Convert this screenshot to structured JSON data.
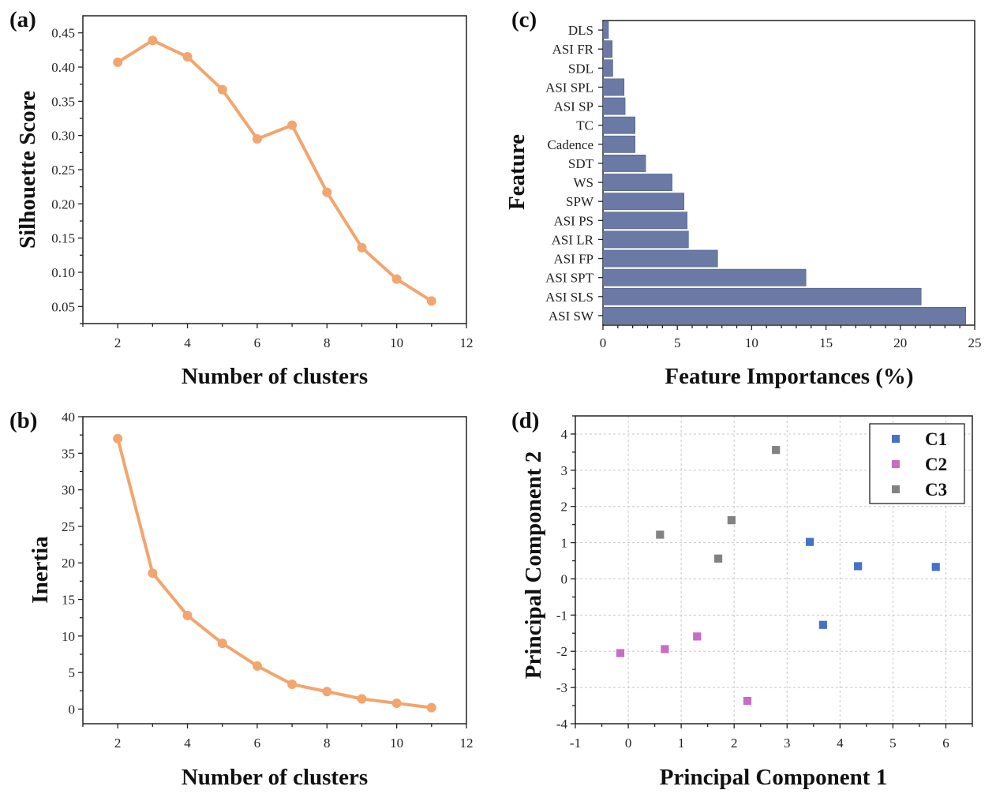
{
  "chart_data": [
    {
      "id": "a",
      "panel_label": "(a)",
      "type": "line",
      "title": "",
      "xlabel": "Number of clusters",
      "ylabel": "Silhouette Score",
      "x": [
        2,
        3,
        4,
        5,
        6,
        7,
        8,
        9,
        10,
        11
      ],
      "series": [
        {
          "name": "Silhouette Score",
          "color": "#f2a56e",
          "values": [
            0.407,
            0.439,
            0.415,
            0.367,
            0.295,
            0.315,
            0.217,
            0.136,
            0.09,
            0.058
          ]
        }
      ],
      "xlim": [
        1,
        12
      ],
      "ylim": [
        0.025,
        0.475
      ],
      "xticks": [
        2,
        4,
        6,
        8,
        10,
        12
      ],
      "xtick_labels": [
        "2",
        "4",
        "6",
        "8",
        "10",
        "12"
      ],
      "yticks": [
        0.05,
        0.1,
        0.15,
        0.2,
        0.25,
        0.3,
        0.35,
        0.4,
        0.45
      ],
      "ytick_labels": [
        "0.05",
        "0.10",
        "0.15",
        "0.20",
        "0.25",
        "0.30",
        "0.35",
        "0.40",
        "0.45"
      ],
      "grid": false,
      "legend": "none"
    },
    {
      "id": "b",
      "panel_label": "(b)",
      "type": "line",
      "title": "",
      "xlabel": "Number of clusters",
      "ylabel": "Inertia",
      "x": [
        2,
        3,
        4,
        5,
        6,
        7,
        8,
        9,
        10,
        11
      ],
      "series": [
        {
          "name": "Inertia",
          "color": "#f2a56e",
          "values": [
            37.0,
            18.6,
            12.8,
            9.0,
            5.9,
            3.4,
            2.4,
            1.4,
            0.8,
            0.2
          ]
        }
      ],
      "xlim": [
        1,
        12
      ],
      "ylim": [
        -2,
        40
      ],
      "xticks": [
        2,
        4,
        6,
        8,
        10,
        12
      ],
      "xtick_labels": [
        "2",
        "4",
        "6",
        "8",
        "10",
        "12"
      ],
      "yticks": [
        0,
        5,
        10,
        15,
        20,
        25,
        30,
        35,
        40
      ],
      "ytick_labels": [
        "0",
        "5",
        "10",
        "15",
        "20",
        "25",
        "30",
        "35",
        "40"
      ],
      "grid": false,
      "legend": "none"
    },
    {
      "id": "c",
      "panel_label": "(c)",
      "type": "bar",
      "orientation": "horizontal",
      "title": "",
      "xlabel": "Feature Importances (%)",
      "ylabel": "Feature",
      "categories": [
        "DLS",
        "ASI FR",
        "SDL",
        "ASI SPL",
        "ASI SP",
        "TC",
        "Cadence",
        "SDT",
        "WS",
        "SPW",
        "ASI PS",
        "ASI LR",
        "ASI FP",
        "ASI SPT",
        "ASI SLS",
        "ASI SW"
      ],
      "values": [
        0.37,
        0.62,
        0.66,
        1.42,
        1.49,
        2.16,
        2.16,
        2.87,
        4.65,
        5.45,
        5.66,
        5.75,
        7.71,
        13.65,
        21.4,
        24.4
      ],
      "color": "#6a7aa4",
      "xlim": [
        0,
        25
      ],
      "xticks": [
        0,
        5,
        10,
        15,
        20,
        25
      ],
      "xtick_labels": [
        "0",
        "5",
        "10",
        "15",
        "20",
        "25"
      ],
      "grid": false,
      "legend": "none"
    },
    {
      "id": "d",
      "panel_label": "(d)",
      "type": "scatter",
      "title": "",
      "xlabel": "Principal Component 1",
      "ylabel": "Principal Component 2",
      "series": [
        {
          "name": "C1",
          "color": "#4472c4",
          "points": [
            [
              3.43,
              1.02
            ],
            [
              4.34,
              0.35
            ],
            [
              5.81,
              0.33
            ],
            [
              3.68,
              -1.27
            ]
          ]
        },
        {
          "name": "C2",
          "color": "#c86cc4",
          "points": [
            [
              -0.15,
              -2.05
            ],
            [
              0.69,
              -1.94
            ],
            [
              1.3,
              -1.59
            ],
            [
              2.25,
              -3.37
            ]
          ]
        },
        {
          "name": "C3",
          "color": "#828282",
          "points": [
            [
              0.6,
              1.22
            ],
            [
              1.95,
              1.62
            ],
            [
              1.7,
              0.56
            ],
            [
              2.79,
              3.56
            ]
          ]
        }
      ],
      "xlim": [
        -1,
        6.5
      ],
      "ylim": [
        -4,
        4.5
      ],
      "xticks": [
        -1,
        0,
        1,
        2,
        3,
        4,
        5,
        6
      ],
      "xtick_labels": [
        "-1",
        "0",
        "1",
        "2",
        "3",
        "4",
        "5",
        "6"
      ],
      "yticks": [
        -4,
        -3,
        -2,
        -1,
        0,
        1,
        2,
        3,
        4
      ],
      "ytick_labels": [
        "-4",
        "-3",
        "-2",
        "-1",
        "0",
        "1",
        "2",
        "3",
        "4"
      ],
      "grid": true,
      "legend": "top-right"
    }
  ]
}
